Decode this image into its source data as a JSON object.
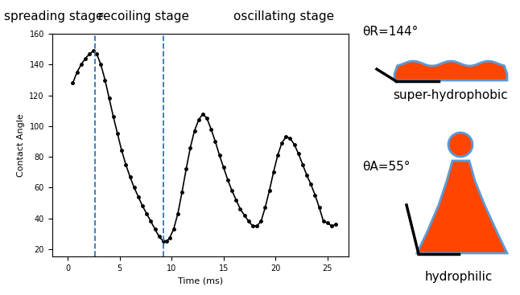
{
  "chart_data": {
    "type": "line",
    "xlabel": "Time (ms)",
    "ylabel": "Contact Angle",
    "x": [
      0.5,
      0.9,
      1.3,
      1.7,
      2.1,
      2.5,
      2.8,
      3.2,
      3.6,
      4.0,
      4.4,
      4.8,
      5.2,
      5.6,
      6.0,
      6.4,
      6.8,
      7.2,
      7.6,
      8.0,
      8.4,
      8.8,
      9.2,
      9.5,
      9.8,
      10.2,
      10.6,
      11.0,
      11.4,
      11.8,
      12.2,
      12.6,
      13.0,
      13.4,
      13.8,
      14.2,
      14.6,
      15.0,
      15.4,
      15.8,
      16.2,
      16.6,
      17.0,
      17.4,
      17.8,
      18.2,
      18.6,
      19.0,
      19.4,
      19.8,
      20.2,
      20.6,
      21.0,
      21.4,
      21.8,
      22.2,
      22.6,
      23.0,
      23.4,
      23.8,
      24.2,
      24.6,
      25.0,
      25.4,
      25.8
    ],
    "values": [
      128,
      135,
      140,
      144,
      147,
      149,
      147,
      140,
      130,
      118,
      106,
      95,
      84,
      75,
      67,
      60,
      54,
      48,
      43,
      38,
      33,
      28,
      25,
      25,
      27,
      33,
      43,
      57,
      72,
      86,
      97,
      104,
      108,
      105,
      98,
      90,
      81,
      73,
      65,
      58,
      52,
      46,
      42,
      38,
      35,
      35,
      38,
      47,
      58,
      70,
      81,
      89,
      93,
      92,
      88,
      82,
      75,
      68,
      62,
      55,
      47,
      38,
      37,
      35,
      36
    ],
    "color": "#000000",
    "marker": "o",
    "line_style": "solid",
    "xlim": [
      -1.5,
      27
    ],
    "ylim": [
      15,
      160
    ],
    "xticks": [
      0,
      5,
      10,
      15,
      20,
      25
    ],
    "yticks": [
      20,
      40,
      60,
      80,
      100,
      120,
      140,
      160
    ],
    "stages": [
      "spreading stage",
      "recoiling stage",
      "oscillating stage"
    ],
    "stage_boundaries": [
      2.6,
      9.2
    ],
    "stage_boundary_color": "#2e75b6",
    "insets": [
      {
        "angle_label": "θR=144°",
        "surface": "super-hydrophobic"
      },
      {
        "angle_label": "θA=55°",
        "surface": "hydrophilic"
      }
    ]
  }
}
